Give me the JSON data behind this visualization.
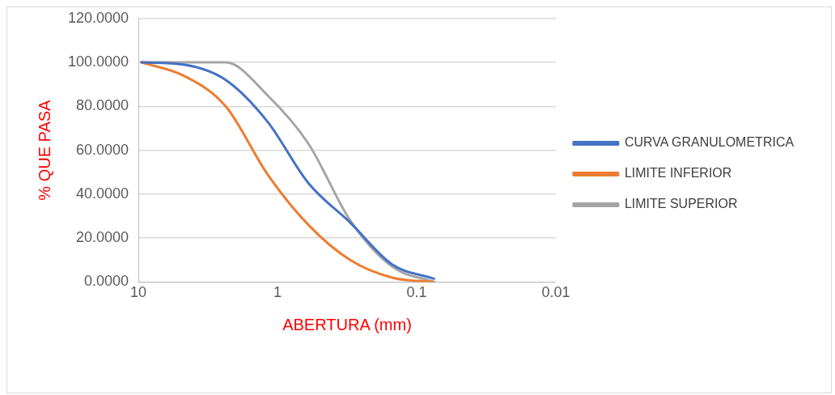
{
  "chart_data": {
    "type": "line",
    "xlabel": "ABERTURA (mm)",
    "ylabel": "% QUE PASA",
    "x": [
      9.5,
      4.75,
      2.36,
      1.18,
      0.6,
      0.3,
      0.15,
      0.075
    ],
    "series": [
      {
        "name": "CURVA GRANULOMETRICA",
        "color": "#4472c4",
        "values": [
          100,
          99,
          92,
          73,
          45,
          27,
          8,
          1.5
        ]
      },
      {
        "name": "LIMITE INFERIOR",
        "color": "#ed7d31",
        "values": [
          100,
          94,
          80,
          49,
          26,
          10,
          2,
          0
        ]
      },
      {
        "name": "LIMITE SUPERIOR",
        "color": "#a5a5a5",
        "values": [
          100,
          100,
          100,
          85,
          63,
          28,
          7,
          0
        ]
      }
    ],
    "log": "x",
    "xlim": [
      10,
      0.01
    ],
    "xticks": [
      10,
      1,
      0.1,
      0.01
    ],
    "ylim": [
      0,
      120
    ],
    "yticks": [
      {
        "value": 0,
        "label": "0.0000"
      },
      {
        "value": 20,
        "label": "20.0000"
      },
      {
        "value": 40,
        "label": "40.0000"
      },
      {
        "value": 60,
        "label": "60.0000"
      },
      {
        "value": 80,
        "label": "80.0000"
      },
      {
        "value": 100,
        "label": "100.0000"
      },
      {
        "value": 120,
        "label": "120.0000"
      }
    ],
    "grid": "y",
    "legend": "right",
    "marker": "none",
    "line_style": "solid"
  }
}
